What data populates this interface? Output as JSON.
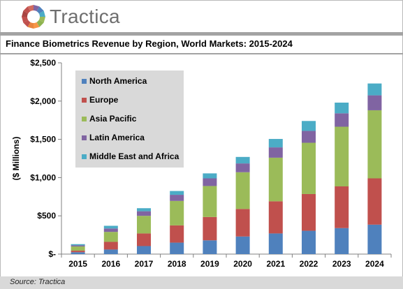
{
  "brand": {
    "name": "Tractica",
    "colors": [
      "#c0504d",
      "#4f81bd",
      "#9bbb59",
      "#8064a2"
    ]
  },
  "footer": {
    "source": "Source: Tractica"
  },
  "chart_data": {
    "type": "bar",
    "stacked": true,
    "title": "Finance Biometrics Revenue by Region, World Markets: 2015-2024",
    "xlabel": "",
    "ylabel": "($ Millions)",
    "ylim": [
      0,
      2500
    ],
    "yticks": [
      0,
      500,
      1000,
      1500,
      2000,
      2500
    ],
    "ytick_labels": [
      "$-",
      "$500",
      "$1,000",
      "$1,500",
      "$2,000",
      "$2,500"
    ],
    "grid": false,
    "legend_position": "top-left",
    "categories": [
      "2015",
      "2016",
      "2017",
      "2018",
      "2019",
      "2020",
      "2021",
      "2022",
      "2023",
      "2024"
    ],
    "series": [
      {
        "name": "North America",
        "color": "#4f81bd",
        "values": [
          25,
          60,
          105,
          150,
          180,
          230,
          270,
          305,
          340,
          385
        ]
      },
      {
        "name": "Europe",
        "color": "#c0504d",
        "values": [
          20,
          100,
          165,
          225,
          305,
          360,
          420,
          480,
          545,
          605
        ]
      },
      {
        "name": "Asia Pacific",
        "color": "#9bbb59",
        "values": [
          55,
          130,
          230,
          320,
          405,
          480,
          570,
          670,
          780,
          890
        ]
      },
      {
        "name": "Latin America",
        "color": "#8064a2",
        "values": [
          15,
          45,
          60,
          80,
          100,
          115,
          135,
          155,
          175,
          195
        ]
      },
      {
        "name": "Middle East and Africa",
        "color": "#4bacc6",
        "values": [
          15,
          35,
          40,
          50,
          65,
          85,
          110,
          130,
          140,
          155
        ]
      }
    ]
  }
}
